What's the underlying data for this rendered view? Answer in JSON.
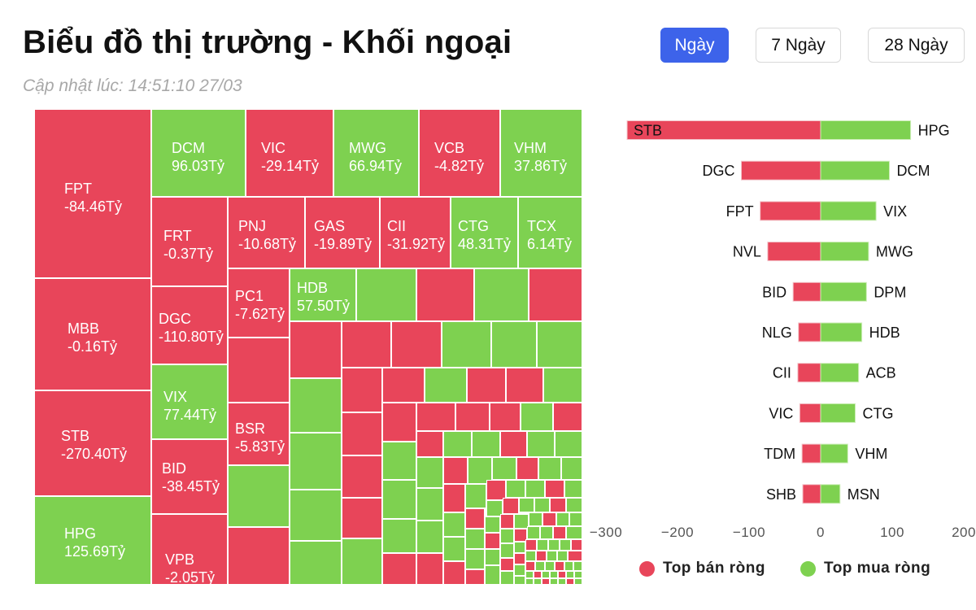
{
  "header": {
    "title": "Biểu đồ thị trường - Khối ngoại",
    "updated": "Cập nhật lúc: 14:51:10 27/03"
  },
  "range_buttons": [
    {
      "label": "Ngày",
      "active": true
    },
    {
      "label": "7 Ngày",
      "active": false
    },
    {
      "label": "28 Ngày",
      "active": false
    }
  ],
  "colors": {
    "sell": "#e8455a",
    "buy": "#7ed150",
    "active_button": "#3d63ea",
    "axis_text": "#555555"
  },
  "legend": {
    "sell_label": "Top bán ròng",
    "buy_label": "Top mua ròng"
  },
  "chart_data": [
    {
      "type": "treemap",
      "unit": "Tỷ",
      "labeled_cells": [
        {
          "ticker": "FPT",
          "value_text": "-84.46Tỷ",
          "value": -84.46
        },
        {
          "ticker": "MBB",
          "value_text": "-0.16Tỷ",
          "value": -0.16
        },
        {
          "ticker": "STB",
          "value_text": "-270.40Tỷ",
          "value": -270.4
        },
        {
          "ticker": "HPG",
          "value_text": "125.69Tỷ",
          "value": 125.69
        },
        {
          "ticker": "DCM",
          "value_text": "96.03Tỷ",
          "value": 96.03
        },
        {
          "ticker": "VIC",
          "value_text": "-29.14Tỷ",
          "value": -29.14
        },
        {
          "ticker": "MWG",
          "value_text": "66.94Tỷ",
          "value": 66.94
        },
        {
          "ticker": "VCB",
          "value_text": "-4.82Tỷ",
          "value": -4.82
        },
        {
          "ticker": "VHM",
          "value_text": "37.86Tỷ",
          "value": 37.86
        },
        {
          "ticker": "FRT",
          "value_text": "-0.37Tỷ",
          "value": -0.37
        },
        {
          "ticker": "PNJ",
          "value_text": "-10.68Tỷ",
          "value": -10.68
        },
        {
          "ticker": "GAS",
          "value_text": "-19.89Tỷ",
          "value": -19.89
        },
        {
          "ticker": "CII",
          "value_text": "-31.92Tỷ",
          "value": -31.92
        },
        {
          "ticker": "CTG",
          "value_text": "48.31Tỷ",
          "value": 48.31
        },
        {
          "ticker": "TCX",
          "value_text": "6.14Tỷ",
          "value": 6.14
        },
        {
          "ticker": "PC1",
          "value_text": "-7.62Tỷ",
          "value": -7.62
        },
        {
          "ticker": "HDB",
          "value_text": "57.50Tỷ",
          "value": 57.5
        },
        {
          "ticker": "DGC",
          "value_text": "-110.80Tỷ",
          "value": -110.8
        },
        {
          "ticker": "VIX",
          "value_text": "77.44Tỷ",
          "value": 77.44
        },
        {
          "ticker": "BSR",
          "value_text": "-5.83Tỷ",
          "value": -5.83
        },
        {
          "ticker": "BID",
          "value_text": "-38.45Tỷ",
          "value": -38.45
        },
        {
          "ticker": "VPB",
          "value_text": "-2.05Tỷ",
          "value": -2.05
        }
      ]
    },
    {
      "type": "bar",
      "orientation": "horizontal",
      "xlim": [
        -300,
        200
      ],
      "x_ticks": [
        -300,
        -200,
        -100,
        0,
        100,
        200
      ],
      "grid": false,
      "legend_position": "bottom",
      "series": [
        {
          "name": "Top bán ròng",
          "categories": [
            "STB",
            "DGC",
            "FPT",
            "NVL",
            "BID",
            "NLG",
            "CII",
            "VIC",
            "TDM",
            "SHB"
          ],
          "values": [
            -270.4,
            -110.8,
            -84.46,
            -74,
            -38.45,
            -31,
            -31.92,
            -29.14,
            -26,
            -25
          ]
        },
        {
          "name": "Top mua ròng",
          "categories": [
            "HPG",
            "DCM",
            "VIX",
            "MWG",
            "DPM",
            "HDB",
            "ACB",
            "CTG",
            "VHM",
            "MSN"
          ],
          "values": [
            125.69,
            96.03,
            77.44,
            66.94,
            64,
            57.5,
            53,
            48.31,
            37.86,
            27
          ]
        }
      ]
    }
  ]
}
